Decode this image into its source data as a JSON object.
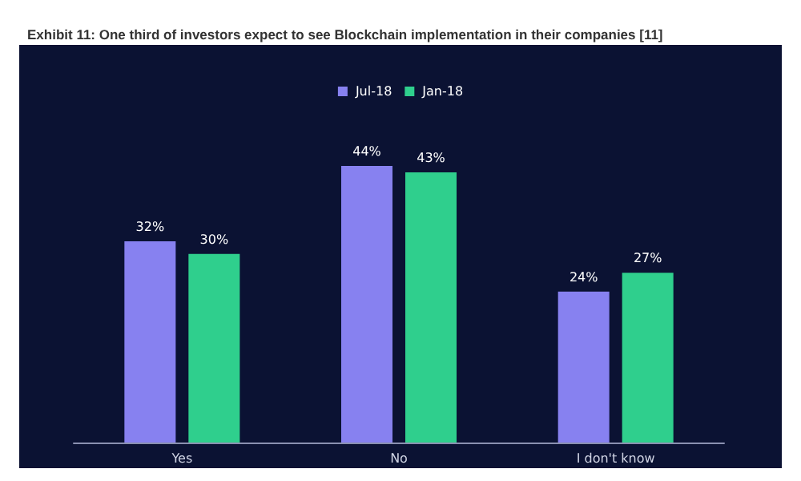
{
  "chart_data": {
    "type": "bar",
    "title": "Exhibit 11: One third of investors expect to see Blockchain implementation in their companies [11]",
    "categories": [
      "Yes",
      "No",
      "I don't know"
    ],
    "series": [
      {
        "name": "Jul-18",
        "color": "#8781f0",
        "values": [
          32,
          44,
          24
        ],
        "value_labels": [
          "32%",
          "44%",
          "24%"
        ]
      },
      {
        "name": "Jan-18",
        "color": "#2fcf8d",
        "values": [
          30,
          43,
          27
        ],
        "value_labels": [
          "30%",
          "43%",
          "27%"
        ]
      }
    ],
    "legend": "top",
    "grid": false,
    "tick_labels": "x"
  }
}
